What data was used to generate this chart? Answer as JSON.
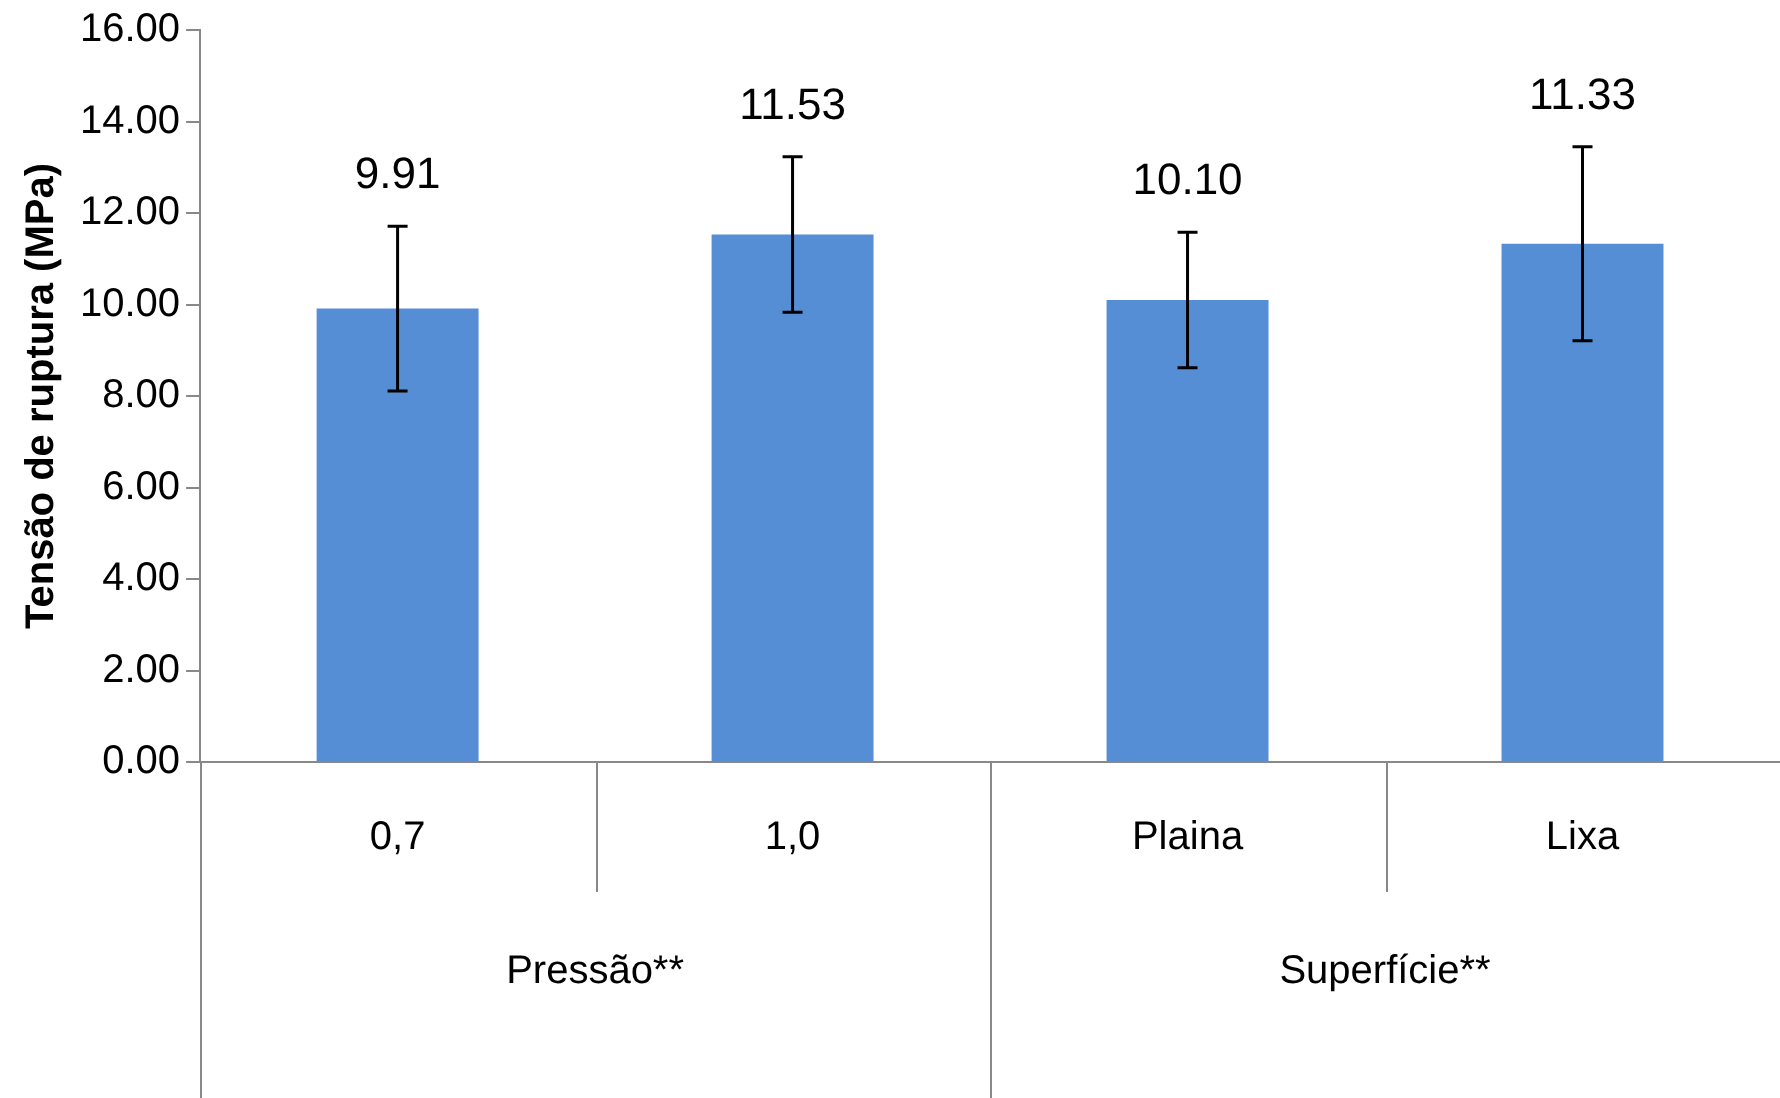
{
  "chart_data": {
    "type": "bar",
    "ylabel": "Tensão de ruptura (MPa)",
    "categories": [
      "0,7",
      "1,0",
      "Plaina",
      "Lixa"
    ],
    "values": [
      9.91,
      11.53,
      10.1,
      11.33
    ],
    "errors": [
      1.8,
      1.7,
      1.48,
      2.12
    ],
    "value_labels": [
      "9.91",
      "11.53",
      "10.10",
      "11.33"
    ],
    "color": "#558ed5",
    "ylim": [
      0,
      16
    ],
    "yticks": [
      {
        "value": 0,
        "label": "0.00"
      },
      {
        "value": 2,
        "label": "2.00"
      },
      {
        "value": 4,
        "label": "4.00"
      },
      {
        "value": 6,
        "label": "6.00"
      },
      {
        "value": 8,
        "label": "8.00"
      },
      {
        "value": 10,
        "label": "10.00"
      },
      {
        "value": 12,
        "label": "12.00"
      },
      {
        "value": 14,
        "label": "14.00"
      },
      {
        "value": 16,
        "label": "16.00"
      }
    ],
    "annotations": [
      "Pressão**",
      "Superfície**"
    ],
    "grid": false,
    "legend": false
  }
}
